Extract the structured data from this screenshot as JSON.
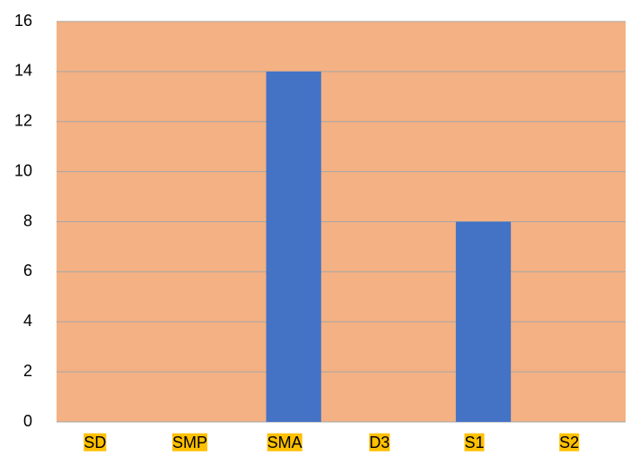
{
  "chart_data": {
    "type": "bar",
    "categories": [
      "SD",
      "SMP",
      "SMA",
      "D3",
      "S1",
      "S2"
    ],
    "values": [
      0,
      0,
      14,
      0,
      8,
      0
    ],
    "color": "#4472c4",
    "plot_background": "#f4b183",
    "label_highlight": "#ffc000",
    "ylim": [
      0,
      16
    ],
    "yticks": [
      0,
      2,
      4,
      6,
      8,
      10,
      12,
      14,
      16
    ],
    "grid": true
  }
}
